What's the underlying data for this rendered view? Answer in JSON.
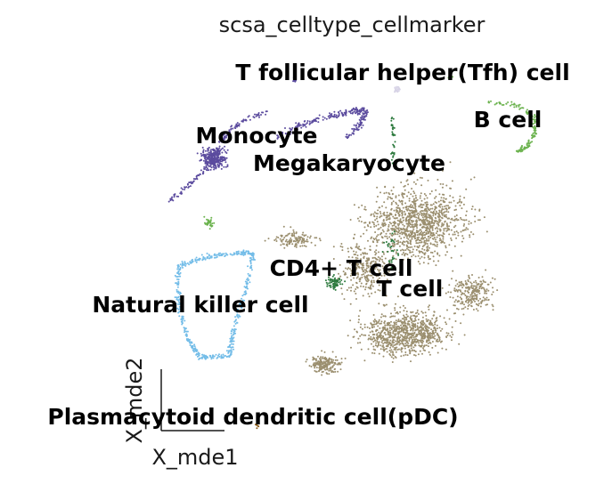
{
  "chart_data": {
    "type": "scatter",
    "title": "scsa_celltype_cellmarker",
    "xlabel": "X_mde1",
    "ylabel": "X_mde2",
    "grid": false,
    "legend": "on data",
    "clusters": [
      {
        "name": "T cell",
        "color": "#9b8f6f"
      },
      {
        "name": "CD4+ T cell",
        "color": "#2d7a3e"
      },
      {
        "name": "Natural killer cell",
        "color": "#74bde8"
      },
      {
        "name": "Monocyte",
        "color": "#5b4b9e"
      },
      {
        "name": "Megakaryocyte",
        "color": "#2d7a3e"
      },
      {
        "name": "B cell",
        "color": "#6cb34f"
      },
      {
        "name": "T follicular helper(Tfh) cell",
        "color": "#d7d3e6"
      },
      {
        "name": "Plasmacytoid dendritic cell(pDC)",
        "color": "#8a5a16"
      }
    ]
  }
}
